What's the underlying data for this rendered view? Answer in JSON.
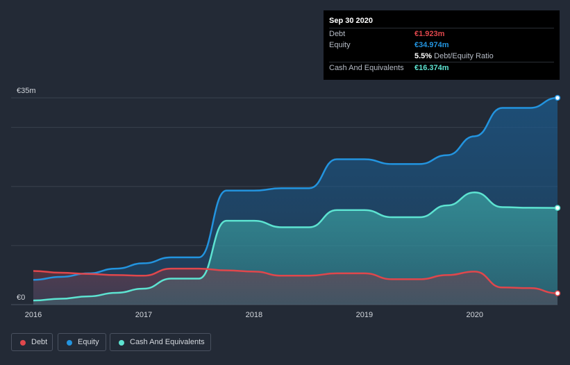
{
  "tooltip": {
    "date": "Sep 30 2020",
    "debt_label": "Debt",
    "debt_value": "€1.923m",
    "equity_label": "Equity",
    "equity_value": "€34.974m",
    "ratio_value": "5.5%",
    "ratio_label": "Debt/Equity Ratio",
    "cash_label": "Cash And Equivalents",
    "cash_value": "€16.374m"
  },
  "legend": {
    "debt": "Debt",
    "equity": "Equity",
    "cash": "Cash And Equivalents"
  },
  "colors": {
    "debt": "#e0474c",
    "equity": "#2394df",
    "cash": "#5de3d1",
    "background": "#232a36"
  },
  "chart_data": {
    "type": "area",
    "title": "",
    "xlabel": "",
    "ylabel": "",
    "xlim": [
      2016,
      2020.75
    ],
    "ylim": [
      0,
      35
    ],
    "y_tick_labels": [
      {
        "value": 0,
        "label": "€0"
      },
      {
        "value": 35,
        "label": "€35m"
      }
    ],
    "gridlines": [
      0,
      10,
      20,
      30,
      35
    ],
    "x_ticks": [
      {
        "value": 2016,
        "label": "2016"
      },
      {
        "value": 2017,
        "label": "2017"
      },
      {
        "value": 2018,
        "label": "2018"
      },
      {
        "value": 2019,
        "label": "2019"
      },
      {
        "value": 2020,
        "label": "2020"
      }
    ],
    "series": [
      {
        "name": "Equity",
        "color": "#2394df",
        "points": [
          [
            2016,
            4.2
          ],
          [
            2016.25,
            4.7
          ],
          [
            2016.5,
            5.3
          ],
          [
            2016.75,
            6.1
          ],
          [
            2017,
            7.0
          ],
          [
            2017.25,
            8.0
          ],
          [
            2017.5,
            8.0
          ],
          [
            2017.75,
            19.3
          ],
          [
            2018,
            19.3
          ],
          [
            2018.25,
            19.7
          ],
          [
            2018.5,
            19.7
          ],
          [
            2018.75,
            24.6
          ],
          [
            2019,
            24.6
          ],
          [
            2019.25,
            23.8
          ],
          [
            2019.5,
            23.8
          ],
          [
            2019.75,
            25.3
          ],
          [
            2020,
            28.5
          ],
          [
            2020.25,
            33.3
          ],
          [
            2020.5,
            33.3
          ],
          [
            2020.75,
            35.0
          ]
        ]
      },
      {
        "name": "Cash And Equivalents",
        "color": "#5de3d1",
        "points": [
          [
            2016,
            0.7
          ],
          [
            2016.25,
            1.0
          ],
          [
            2016.5,
            1.4
          ],
          [
            2016.75,
            2.0
          ],
          [
            2017,
            2.7
          ],
          [
            2017.25,
            4.4
          ],
          [
            2017.5,
            4.4
          ],
          [
            2017.75,
            14.2
          ],
          [
            2018,
            14.2
          ],
          [
            2018.25,
            13.1
          ],
          [
            2018.5,
            13.1
          ],
          [
            2018.75,
            16.0
          ],
          [
            2019,
            16.0
          ],
          [
            2019.25,
            14.8
          ],
          [
            2019.5,
            14.8
          ],
          [
            2019.75,
            16.8
          ],
          [
            2020,
            19.0
          ],
          [
            2020.25,
            16.5
          ],
          [
            2020.5,
            16.4
          ],
          [
            2020.75,
            16.374
          ]
        ]
      },
      {
        "name": "Debt",
        "color": "#e0474c",
        "points": [
          [
            2016,
            5.7
          ],
          [
            2016.25,
            5.4
          ],
          [
            2016.5,
            5.2
          ],
          [
            2016.75,
            5.0
          ],
          [
            2017,
            4.9
          ],
          [
            2017.25,
            6.1
          ],
          [
            2017.5,
            6.1
          ],
          [
            2017.75,
            5.8
          ],
          [
            2018,
            5.6
          ],
          [
            2018.25,
            4.9
          ],
          [
            2018.5,
            4.9
          ],
          [
            2018.75,
            5.3
          ],
          [
            2019,
            5.3
          ],
          [
            2019.25,
            4.3
          ],
          [
            2019.5,
            4.3
          ],
          [
            2019.75,
            5.0
          ],
          [
            2020,
            5.6
          ],
          [
            2020.25,
            2.9
          ],
          [
            2020.5,
            2.8
          ],
          [
            2020.75,
            1.923
          ]
        ]
      }
    ]
  }
}
